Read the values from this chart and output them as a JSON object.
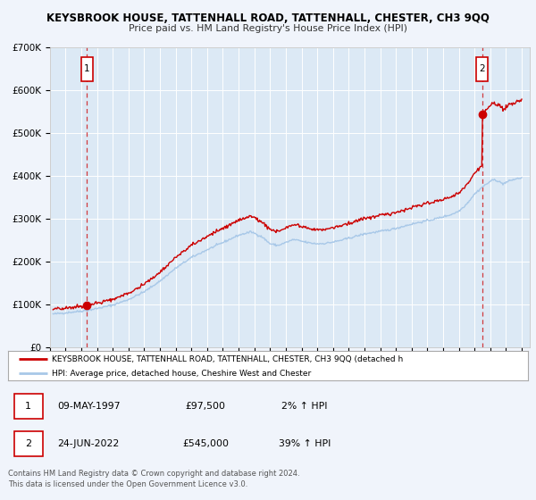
{
  "title1": "KEYSBROOK HOUSE, TATTENHALL ROAD, TATTENHALL, CHESTER, CH3 9QQ",
  "title2": "Price paid vs. HM Land Registry's House Price Index (HPI)",
  "bg_color": "#f0f4fb",
  "plot_bg_color": "#dce9f5",
  "grid_color": "#ffffff",
  "sale1_date": 1997.36,
  "sale1_price": 97500,
  "sale2_date": 2022.48,
  "sale2_price": 545000,
  "ylim_max": 700000,
  "xlim_min": 1995.0,
  "xlim_max": 2025.5,
  "legend_line1": "KEYSBROOK HOUSE, TATTENHALL ROAD, TATTENHALL, CHESTER, CH3 9QQ (detached h",
  "legend_line2": "HPI: Average price, detached house, Cheshire West and Chester",
  "label1_date": "09-MAY-1997",
  "label1_price": "£97,500",
  "label1_hpi": "2% ↑ HPI",
  "label2_date": "24-JUN-2022",
  "label2_price": "£545,000",
  "label2_hpi": "39% ↑ HPI",
  "footer1": "Contains HM Land Registry data © Crown copyright and database right 2024.",
  "footer2": "This data is licensed under the Open Government Licence v3.0.",
  "red_color": "#cc0000",
  "blue_color": "#a8c8e8"
}
